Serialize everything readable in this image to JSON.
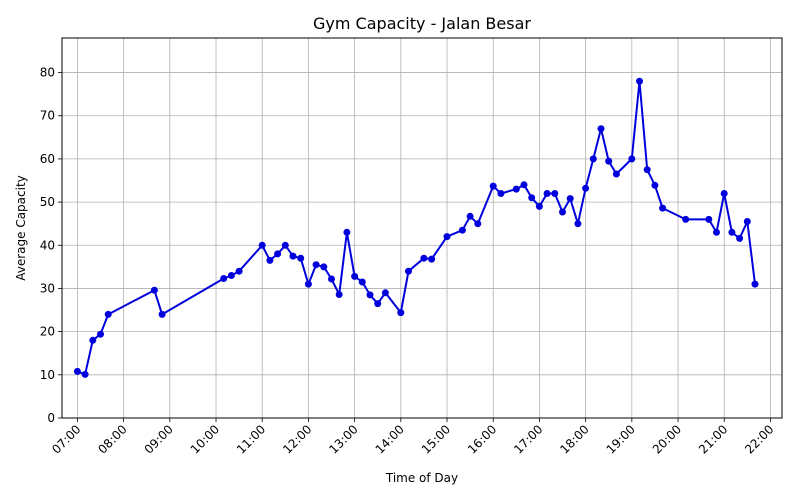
{
  "chart_data": {
    "type": "line",
    "title": "Gym Capacity - Jalan Besar",
    "xlabel": "Time of Day",
    "ylabel": "Average Capacity",
    "xlim": [
      "06:40",
      "22:15"
    ],
    "ylim": [
      0,
      88
    ],
    "grid": true,
    "line_color": "#0000dd",
    "x_ticks": [
      "07:00",
      "08:00",
      "09:00",
      "10:00",
      "11:00",
      "12:00",
      "13:00",
      "14:00",
      "15:00",
      "16:00",
      "17:00",
      "18:00",
      "19:00",
      "20:00",
      "21:00",
      "22:00"
    ],
    "y_ticks": [
      0,
      10,
      20,
      30,
      40,
      50,
      60,
      70,
      80
    ],
    "series": [
      {
        "x": [
          "07:00",
          "07:10",
          "07:20",
          "07:30",
          "07:40",
          "08:40",
          "08:50",
          "10:10",
          "10:20",
          "10:30",
          "11:00",
          "11:10",
          "11:20",
          "11:30",
          "11:40",
          "11:50",
          "12:00",
          "12:10",
          "12:20",
          "12:30",
          "12:40",
          "12:50",
          "13:00",
          "13:10",
          "13:20",
          "13:30",
          "13:40",
          "14:00",
          "14:10",
          "14:30",
          "14:40",
          "15:00",
          "15:20",
          "15:30",
          "15:40",
          "16:00",
          "16:10",
          "16:30",
          "16:40",
          "16:50",
          "17:00",
          "17:10",
          "17:20",
          "17:30",
          "17:40",
          "17:50",
          "18:00",
          "18:10",
          "18:20",
          "18:30",
          "18:40",
          "19:00",
          "19:10",
          "19:20",
          "19:30",
          "19:40",
          "20:10",
          "20:40",
          "20:50",
          "21:00",
          "21:10",
          "21:20",
          "21:30",
          "21:40"
        ],
        "y": [
          10.8,
          10.1,
          18,
          19.4,
          24,
          29.6,
          24,
          32.3,
          33,
          34,
          40,
          36.5,
          38,
          40,
          37.5,
          37,
          31,
          35.5,
          35,
          32.2,
          28.6,
          43,
          32.8,
          31.5,
          28.5,
          26.5,
          29,
          24.4,
          34,
          37,
          36.8,
          42,
          43.5,
          46.7,
          45,
          53.7,
          52,
          53,
          54,
          51,
          49,
          52,
          52,
          47.7,
          50.8,
          45,
          53.2,
          60,
          67,
          59.5,
          56.5,
          60,
          78,
          57.5,
          53.9,
          48.6,
          46,
          46,
          43,
          52,
          43,
          41.6,
          45.5,
          31
        ]
      }
    ]
  }
}
